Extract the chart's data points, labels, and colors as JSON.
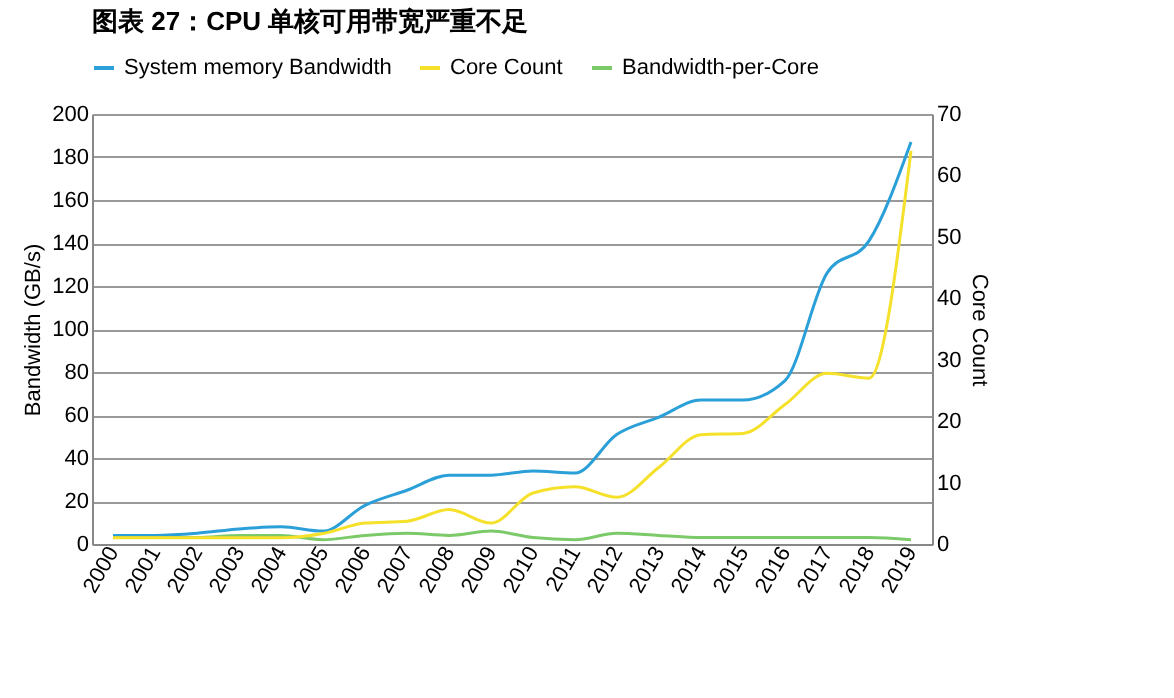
{
  "chart_data": {
    "type": "line",
    "title": "图表 27：CPU 单核可用带宽严重不足",
    "ylabel": "Bandwidth (GB/s)",
    "y2label": "Core Count",
    "categories": [
      "2000",
      "2001",
      "2002",
      "2003",
      "2004",
      "2005",
      "2006",
      "2007",
      "2008",
      "2009",
      "2010",
      "2011",
      "2012",
      "2013",
      "2014",
      "2015",
      "2016",
      "2017",
      "2018",
      "2019"
    ],
    "series": [
      {
        "name": "System memory Bandwidth",
        "color": "#2a9fd8",
        "values": [
          4,
          4,
          5,
          7,
          8,
          6,
          18,
          25,
          32,
          32,
          34,
          33,
          51,
          59,
          67,
          67,
          76,
          126,
          141,
          187
        ]
      },
      {
        "name": "Core Count",
        "color": "#f5e02a",
        "axis": "y2",
        "values": [
          1,
          1,
          1,
          1,
          1,
          1.7,
          3.4,
          3.7,
          5.6,
          3.4,
          8.3,
          9.3,
          7.6,
          12.5,
          17.8,
          18,
          22.7,
          27.8,
          27,
          64
        ]
      },
      {
        "name": "Bandwidth-per-Core",
        "color": "#7cc96a",
        "values": [
          3,
          3,
          3,
          4,
          4,
          2,
          4,
          5,
          4,
          6,
          3,
          2,
          5,
          4,
          3,
          3,
          3,
          3,
          3,
          2
        ]
      }
    ],
    "ylim": [
      0,
      200
    ],
    "yticks": [
      0,
      20,
      40,
      60,
      80,
      100,
      120,
      140,
      160,
      180,
      200
    ],
    "y2lim": [
      0,
      70
    ],
    "y2ticks": [
      0,
      10,
      20,
      30,
      40,
      50,
      60,
      70
    ],
    "grid": "y",
    "legend": "top",
    "marker": "none",
    "line_style": "solid"
  }
}
